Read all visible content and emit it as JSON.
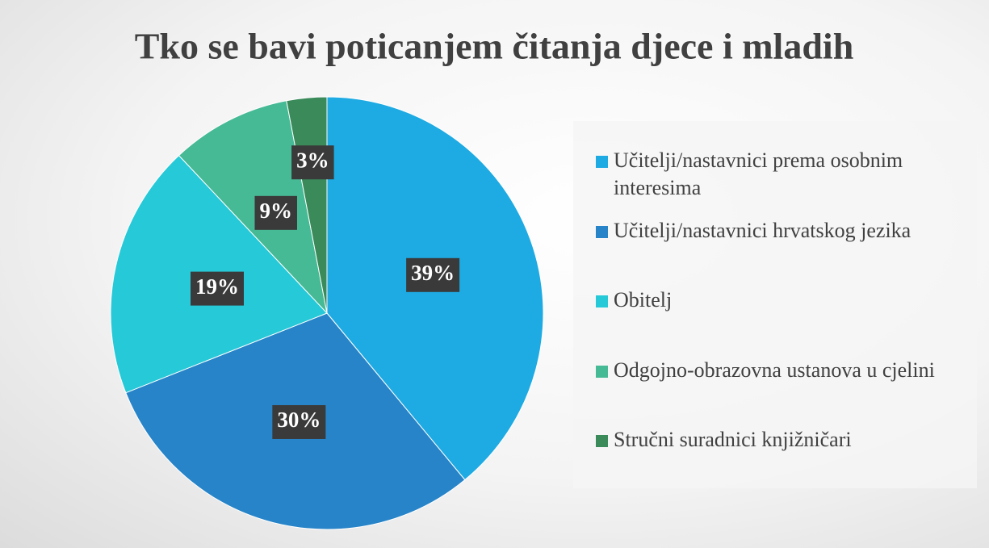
{
  "chart_data": {
    "type": "pie",
    "title": "Tko se bavi poticanjem čitanja djece i mladih",
    "categories": [
      "Učitelji/nastavnici prema osobnim interesima",
      "Učitelji/nastavnici hrvatskog jezika",
      "Obitelj",
      "Odgojno-obrazovna ustanova u cjelini",
      "Stručni suradnici knjižničari"
    ],
    "values": [
      39,
      30,
      19,
      9,
      3
    ],
    "value_labels": [
      "39%",
      "30%",
      "19%",
      "9%",
      "3%"
    ],
    "colors": [
      "#1eaae2",
      "#2784c8",
      "#26c9d8",
      "#46b995",
      "#3a8a5a"
    ],
    "legend": "right"
  }
}
